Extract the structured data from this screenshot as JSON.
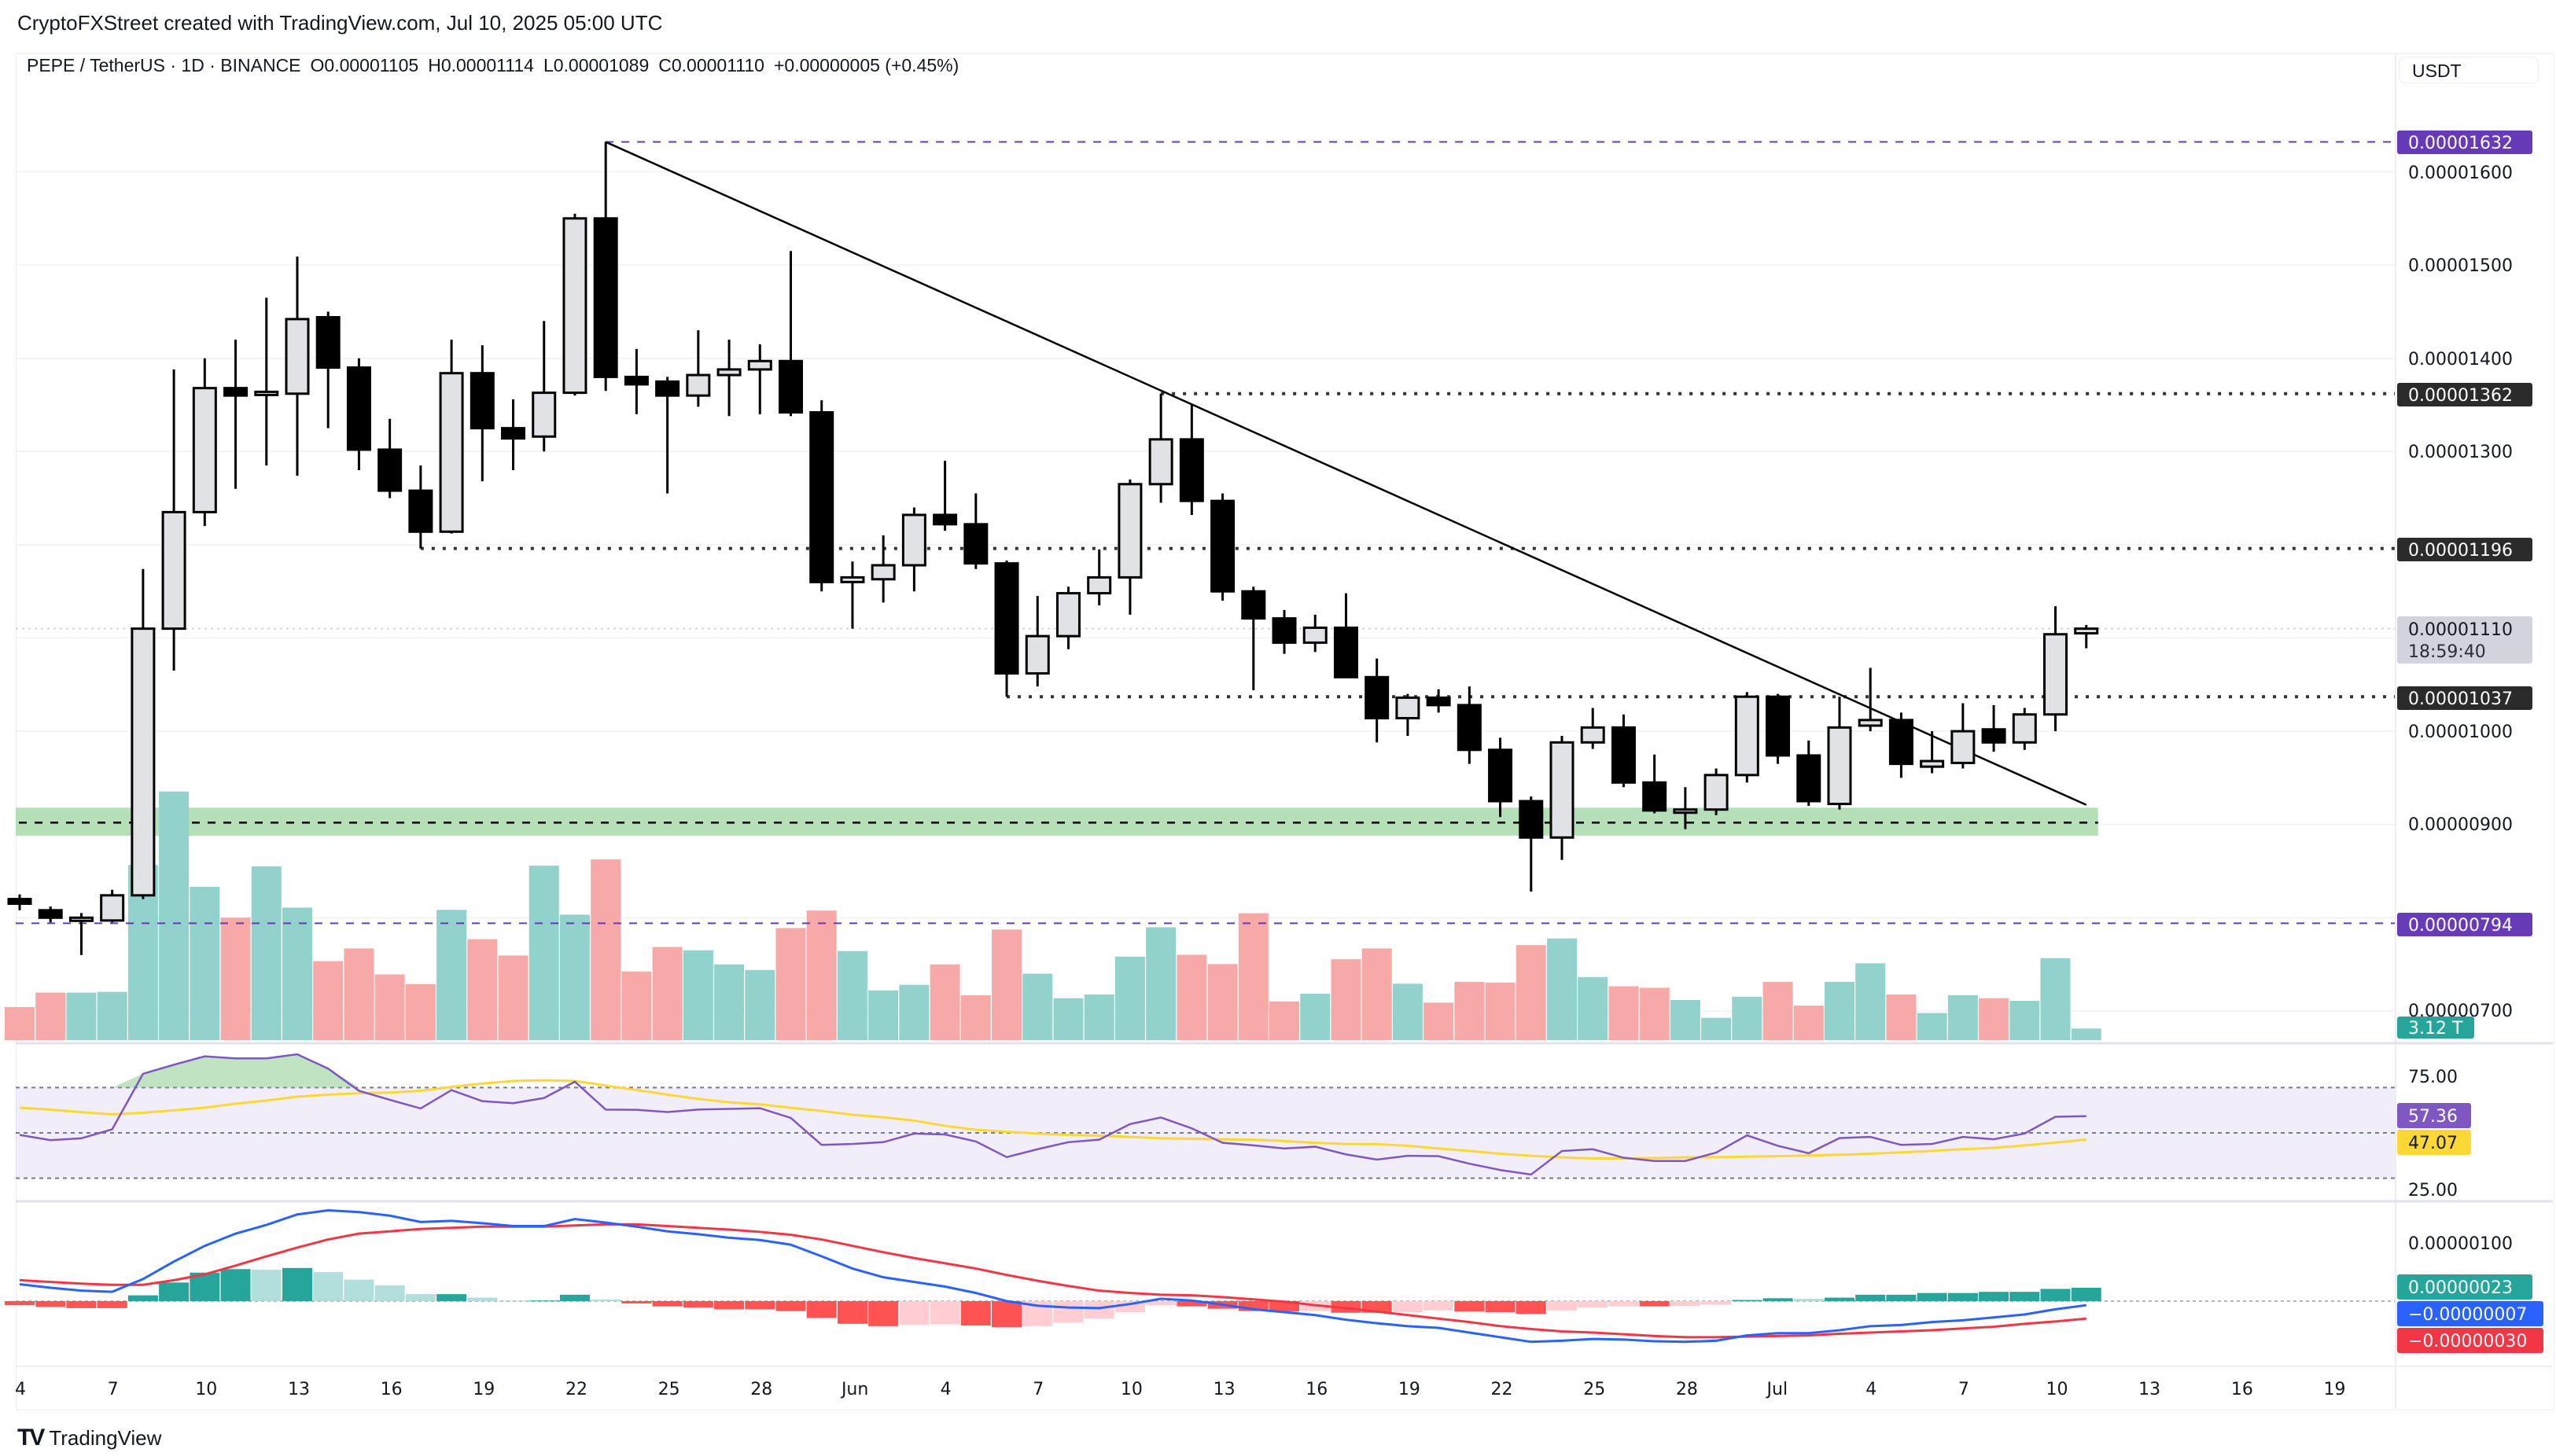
{
  "caption": "CryptoFXStreet created with TradingView.com, Jul 10, 2025 05:00 UTC",
  "legend": {
    "symbol": "PEPE / TetherUS · 1D · BINANCE",
    "open": "O0.00001105",
    "high": "H0.00001114",
    "low": "L0.00001089",
    "close": "C0.00001110",
    "change": "+0.00000005 (+0.45%)"
  },
  "currency_button": "USDT",
  "logo_text": "TradingView",
  "colors": {
    "up_volume": "#92d2cc",
    "down_volume": "#f7a9a7",
    "rsi": "#7e57c2",
    "rsi_ma": "#fdd835",
    "macd": "#2962ff",
    "signal": "#f23645",
    "level_purple": "#673ab7",
    "zone": "#b5dfb6"
  },
  "price_axis": {
    "ticks": [
      "0.00001600",
      "0.00001500",
      "0.00001400",
      "0.00001300",
      "0.00001000",
      "0.00000900",
      "0.00000700"
    ],
    "badges": {
      "high_level": "0.00001632",
      "res_1362": "0.00001362",
      "res_1196": "0.00001196",
      "last_price": "0.00001110",
      "countdown": "18:59:40",
      "sup_1037": "0.00001037",
      "low_level": "0.00000794",
      "volume": "3.12 T"
    }
  },
  "rsi_axis": {
    "ticks": [
      "75.00",
      "25.00"
    ],
    "rsi_value": "57.36",
    "ma_value": "47.07"
  },
  "macd_axis": {
    "tick": "0.00000100",
    "hist_value": "0.00000023",
    "macd_value": "−0.00000007",
    "signal_value": "−0.00000030"
  },
  "time_axis": {
    "labels": [
      "4",
      "7",
      "10",
      "13",
      "16",
      "19",
      "22",
      "25",
      "28",
      "Jun",
      "4",
      "7",
      "10",
      "13",
      "16",
      "19",
      "22",
      "25",
      "28",
      "Jul",
      "4",
      "7",
      "10",
      "13",
      "16",
      "19"
    ]
  },
  "chart_data": {
    "type": "candlestick",
    "dates": [
      "May 4",
      "May 5",
      "May 6",
      "May 7",
      "May 8",
      "May 9",
      "May 10",
      "May 11",
      "May 12",
      "May 13",
      "May 14",
      "May 15",
      "May 16",
      "May 17",
      "May 18",
      "May 19",
      "May 20",
      "May 21",
      "May 22",
      "May 23",
      "May 24",
      "May 25",
      "May 26",
      "May 27",
      "May 28",
      "May 29",
      "May 30",
      "May 31",
      "Jun 1",
      "Jun 2",
      "Jun 3",
      "Jun 4",
      "Jun 5",
      "Jun 6",
      "Jun 7",
      "Jun 8",
      "Jun 9",
      "Jun 10",
      "Jun 11",
      "Jun 12",
      "Jun 13",
      "Jun 14",
      "Jun 15",
      "Jun 16",
      "Jun 17",
      "Jun 18",
      "Jun 19",
      "Jun 20",
      "Jun 21",
      "Jun 22",
      "Jun 23",
      "Jun 24",
      "Jun 25",
      "Jun 26",
      "Jun 27",
      "Jun 28",
      "Jun 29",
      "Jun 30",
      "Jul 1",
      "Jul 2",
      "Jul 3",
      "Jul 4",
      "Jul 5",
      "Jul 6",
      "Jul 7",
      "Jul 8",
      "Jul 9",
      "Jul 10"
    ],
    "ohlc": [
      [
        8.2e-06,
        8.25e-06,
        8.08e-06,
        8.15e-06
      ],
      [
        8.08e-06,
        8.12e-06,
        7.95e-06,
        8e-06
      ],
      [
        7.97e-06,
        8.05e-06,
        7.6e-06,
        8e-06
      ],
      [
        7.97e-06,
        8.3e-06,
        7.95e-06,
        8.24e-06
      ],
      [
        8.24e-06,
        1.174e-05,
        8.2e-06,
        1.11e-05
      ],
      [
        1.11e-05,
        1.388e-05,
        1.065e-05,
        1.235e-05
      ],
      [
        1.235e-05,
        1.4e-05,
        1.22e-05,
        1.368e-05
      ],
      [
        1.368e-05,
        1.42e-05,
        1.26e-05,
        1.36e-05
      ],
      [
        1.362e-05,
        1.465e-05,
        1.285e-05,
        1.364e-05
      ],
      [
        1.362e-05,
        1.509e-05,
        1.274e-05,
        1.442e-05
      ],
      [
        1.444e-05,
        1.45e-05,
        1.325e-05,
        1.39e-05
      ],
      [
        1.39e-05,
        1.4e-05,
        1.28e-05,
        1.302e-05
      ],
      [
        1.302e-05,
        1.335e-05,
        1.25e-05,
        1.258e-05
      ],
      [
        1.258e-05,
        1.285e-05,
        1.196e-05,
        1.214e-05
      ],
      [
        1.214e-05,
        1.42e-05,
        1.212e-05,
        1.384e-05
      ],
      [
        1.384e-05,
        1.414e-05,
        1.268e-05,
        1.325e-05
      ],
      [
        1.325e-05,
        1.356e-05,
        1.28e-05,
        1.314e-05
      ],
      [
        1.316e-05,
        1.44e-05,
        1.3e-05,
        1.363e-05
      ],
      [
        1.363e-05,
        1.555e-05,
        1.36e-05,
        1.55e-05
      ],
      [
        1.55e-05,
        1.632e-05,
        1.365e-05,
        1.38e-05
      ],
      [
        1.38e-05,
        1.41e-05,
        1.34e-05,
        1.372e-05
      ],
      [
        1.375e-05,
        1.38e-05,
        1.255e-05,
        1.36e-05
      ],
      [
        1.36e-05,
        1.43e-05,
        1.348e-05,
        1.382e-05
      ],
      [
        1.382e-05,
        1.42e-05,
        1.338e-05,
        1.388e-05
      ],
      [
        1.388e-05,
        1.415e-05,
        1.34e-05,
        1.397e-05
      ],
      [
        1.397e-05,
        1.515e-05,
        1.338e-05,
        1.342e-05
      ],
      [
        1.342e-05,
        1.355e-05,
        1.15e-05,
        1.16e-05
      ],
      [
        1.16e-05,
        1.182e-05,
        1.11e-05,
        1.165e-05
      ],
      [
        1.163e-05,
        1.21e-05,
        1.138e-05,
        1.178e-05
      ],
      [
        1.178e-05,
        1.24e-05,
        1.15e-05,
        1.232e-05
      ],
      [
        1.232e-05,
        1.29e-05,
        1.215e-05,
        1.222e-05
      ],
      [
        1.222e-05,
        1.255e-05,
        1.174e-05,
        1.18e-05
      ],
      [
        1.18e-05,
        1.183e-05,
        1.037e-05,
        1.062e-05
      ],
      [
        1.062e-05,
        1.145e-05,
        1.048e-05,
        1.102e-05
      ],
      [
        1.102e-05,
        1.155e-05,
        1.088e-05,
        1.148e-05
      ],
      [
        1.148e-05,
        1.195e-05,
        1.135e-05,
        1.165e-05
      ],
      [
        1.165e-05,
        1.27e-05,
        1.125e-05,
        1.265e-05
      ],
      [
        1.265e-05,
        1.362e-05,
        1.245e-05,
        1.313e-05
      ],
      [
        1.313e-05,
        1.35e-05,
        1.232e-05,
        1.247e-05
      ],
      [
        1.247e-05,
        1.255e-05,
        1.14e-05,
        1.15e-05
      ],
      [
        1.15e-05,
        1.155e-05,
        1.044e-05,
        1.121e-05
      ],
      [
        1.121e-05,
        1.13e-05,
        1.083e-05,
        1.095e-05
      ],
      [
        1.095e-05,
        1.125e-05,
        1.085e-05,
        1.111e-05
      ],
      [
        1.111e-05,
        1.148e-05,
        1.058e-05,
        1.058e-05
      ],
      [
        1.058e-05,
        1.078e-05,
        9.88e-06,
        1.014e-05
      ],
      [
        1.014e-05,
        1.04e-05,
        9.95e-06,
        1.036e-05
      ],
      [
        1.036e-05,
        1.045e-05,
        1.02e-05,
        1.028e-05
      ],
      [
        1.028e-05,
        1.048e-05,
        9.65e-06,
        9.8e-06
      ],
      [
        9.8e-06,
        9.93e-06,
        9.08e-06,
        9.25e-06
      ],
      [
        9.25e-06,
        9.3e-06,
        8.28e-06,
        8.86e-06
      ],
      [
        8.86e-06,
        9.95e-06,
        8.62e-06,
        9.88e-06
      ],
      [
        9.88e-06,
        1.025e-05,
        9.81e-06,
        1.004e-05
      ],
      [
        1.004e-05,
        1.018e-05,
        9.4e-06,
        9.45e-06
      ],
      [
        9.45e-06,
        9.75e-06,
        9.12e-06,
        9.15e-06
      ],
      [
        9.14e-06,
        9.4e-06,
        8.95e-06,
        9.16e-06
      ],
      [
        9.16e-06,
        9.6e-06,
        9.1e-06,
        9.53e-06
      ],
      [
        9.53e-06,
        1.042e-05,
        9.45e-06,
        1.037e-05
      ],
      [
        1.037e-05,
        1.04e-05,
        9.65e-06,
        9.74e-06
      ],
      [
        9.74e-06,
        9.9e-06,
        9.2e-06,
        9.25e-06
      ],
      [
        9.22e-06,
        1.037e-05,
        9.16e-06,
        1.004e-05
      ],
      [
        1.006e-05,
        1.068e-05,
        1e-05,
        1.012e-05
      ],
      [
        1.012e-05,
        1.02e-05,
        9.5e-06,
        9.65e-06
      ],
      [
        9.62e-06,
        1e-05,
        9.55e-06,
        9.68e-06
      ],
      [
        9.66e-06,
        1.03e-05,
        9.6e-06,
        1e-05
      ],
      [
        1.002e-05,
        1.028e-05,
        9.78e-06,
        9.88e-06
      ],
      [
        9.88e-06,
        1.025e-05,
        9.8e-06,
        1.018e-05
      ],
      [
        1.018e-05,
        1.134e-05,
        1e-05,
        1.104e-05
      ],
      [
        1.105e-05,
        1.114e-05,
        1.089e-05,
        1.11e-05
      ]
    ],
    "volume_T": [
      8.9,
      12.8,
      12.8,
      13.0,
      47.2,
      67.0,
      41.3,
      33.0,
      46.8,
      35.7,
      21.3,
      24.7,
      17.7,
      15.1,
      35.1,
      27.2,
      22.8,
      47.0,
      33.8,
      48.7,
      18.5,
      25.1,
      24.2,
      20.4,
      18.9,
      30.2,
      34.9,
      24.0,
      13.4,
      14.9,
      20.4,
      12.1,
      29.8,
      17.9,
      11.3,
      12.3,
      22.5,
      30.4,
      23.0,
      20.5,
      34.2,
      10.4,
      12.5,
      21.8,
      24.7,
      15.2,
      10.1,
      15.7,
      15.5,
      25.6,
      27.4,
      17.0,
      14.5,
      14.1,
      10.8,
      6.0,
      11.7,
      15.7,
      9.3,
      15.7,
      20.7,
      12.3,
      7.3,
      12.1,
      11.3,
      10.6,
      22.1,
      3.12
    ],
    "levels": {
      "high": 1.632e-05,
      "resistance_1": 1.362e-05,
      "resistance_2": 1.196e-05,
      "support_1": 1.037e-05,
      "low": 7.94e-06,
      "last": 1.11e-05,
      "support_zone": [
        8.88e-06,
        9.18e-06
      ],
      "zone_mid": 9.02e-06
    },
    "trendline": {
      "from": [
        "May 23",
        1.632e-05
      ],
      "to": [
        "Jul 10",
        9.21e-06
      ]
    },
    "price_range": [
      6.9e-06,
      1.66e-05
    ],
    "rsi": [
      49.1,
      46.8,
      47.6,
      51.6,
      76.1,
      80.1,
      83.8,
      82.9,
      82.9,
      84.7,
      78.4,
      68.6,
      64.6,
      60.8,
      68.9,
      64.0,
      63.1,
      65.4,
      72.6,
      60.3,
      60.2,
      59.2,
      60.3,
      60.6,
      60.9,
      56.6,
      44.7,
      45.1,
      45.9,
      49.7,
      49.3,
      46.2,
      39.3,
      42.8,
      45.9,
      47.0,
      53.9,
      56.8,
      52.0,
      45.6,
      44.5,
      43.1,
      43.9,
      40.5,
      38.2,
      39.9,
      39.7,
      36.4,
      33.6,
      31.6,
      42.0,
      42.8,
      39.0,
      37.6,
      37.6,
      41.3,
      48.9,
      44.3,
      41.0,
      47.7,
      48.2,
      44.7,
      45.1,
      48.2,
      47.2,
      49.7,
      57.1,
      57.36
    ],
    "rsi_ma": [
      61.1,
      60.3,
      59.1,
      58.2,
      58.9,
      60.0,
      61.1,
      62.9,
      64.3,
      66.0,
      66.9,
      67.5,
      67.8,
      68.6,
      70.3,
      71.8,
      72.9,
      73.2,
      72.9,
      70.9,
      68.9,
      66.9,
      65.0,
      63.5,
      62.6,
      61.1,
      59.7,
      58.0,
      56.9,
      55.4,
      53.1,
      51.4,
      50.5,
      49.7,
      49.1,
      48.8,
      48.2,
      47.6,
      47.4,
      47.2,
      47.0,
      46.4,
      45.6,
      45.1,
      45.0,
      44.3,
      43.1,
      42.0,
      40.8,
      39.9,
      39.2,
      38.7,
      38.7,
      38.9,
      39.2,
      39.3,
      39.5,
      39.7,
      40.0,
      40.3,
      40.8,
      41.4,
      42.0,
      42.8,
      43.4,
      44.5,
      45.7,
      47.07
    ],
    "rsi_bands": [
      70,
      50,
      30
    ],
    "macd": [
      2.9e-07,
      2.3e-07,
      1.8e-07,
      1.6e-07,
      3.8e-07,
      6.8e-07,
      9.5e-07,
      1.16e-06,
      1.31e-06,
      1.49e-06,
      1.56e-06,
      1.53e-06,
      1.47e-06,
      1.36e-06,
      1.38e-06,
      1.34e-06,
      1.29e-06,
      1.29e-06,
      1.41e-06,
      1.35e-06,
      1.28e-06,
      1.2e-06,
      1.15e-06,
      1.09e-06,
      1.05e-06,
      9.7e-07,
      7.7e-07,
      5.6e-07,
      4.1e-07,
      3.3e-07,
      2.5e-07,
      1.4e-07,
      0,
      -8e-08,
      -1.1e-07,
      -1.2e-07,
      -5e-08,
      4e-08,
      1e-08,
      -6e-08,
      -1.4e-07,
      -1.9e-07,
      -2.4e-07,
      -3.2e-07,
      -3.8e-07,
      -4.3e-07,
      -4.6e-07,
      -5.4e-07,
      -6.2e-07,
      -7e-07,
      -6.8e-07,
      -6.5e-07,
      -6.6e-07,
      -6.9e-07,
      -7e-07,
      -6.8e-07,
      -5.9e-07,
      -5.5e-07,
      -5.5e-07,
      -5e-07,
      -4.3e-07,
      -4.1e-07,
      -3.6e-07,
      -3.3e-07,
      -2.8e-07,
      -2.3e-07,
      -1.4e-07,
      -7e-08
    ],
    "signal": [
      3.6e-07,
      3.3e-07,
      3e-07,
      2.8e-07,
      2.8e-07,
      3.6e-07,
      4.6e-07,
      6.1e-07,
      7.7e-07,
      9.2e-07,
      1.06e-06,
      1.16e-06,
      1.2e-06,
      1.24e-06,
      1.26e-06,
      1.28e-06,
      1.28e-06,
      1.28e-06,
      1.3e-06,
      1.32e-06,
      1.32e-06,
      1.29e-06,
      1.26e-06,
      1.23e-06,
      1.19e-06,
      1.14e-06,
      1.06e-06,
      9.5e-07,
      8.4e-07,
      7.4e-07,
      6.5e-07,
      5.6e-07,
      4.5e-07,
      3.5e-07,
      2.6e-07,
      1.8e-07,
      1.4e-07,
      1.1e-07,
      1e-07,
      7e-08,
      3e-08,
      -1e-08,
      -7e-08,
      -1.2e-07,
      -1.8e-07,
      -2.4e-07,
      -3e-07,
      -3.6e-07,
      -4.3e-07,
      -4.8e-07,
      -5.2e-07,
      -5.4e-07,
      -5.7e-07,
      -6e-07,
      -6.2e-07,
      -6.2e-07,
      -6.1e-07,
      -6e-07,
      -5.9e-07,
      -5.6e-07,
      -5.4e-07,
      -5.2e-07,
      -5e-07,
      -4.7e-07,
      -4.4e-07,
      -3.9e-07,
      -3.5e-07,
      -3e-07
    ]
  }
}
